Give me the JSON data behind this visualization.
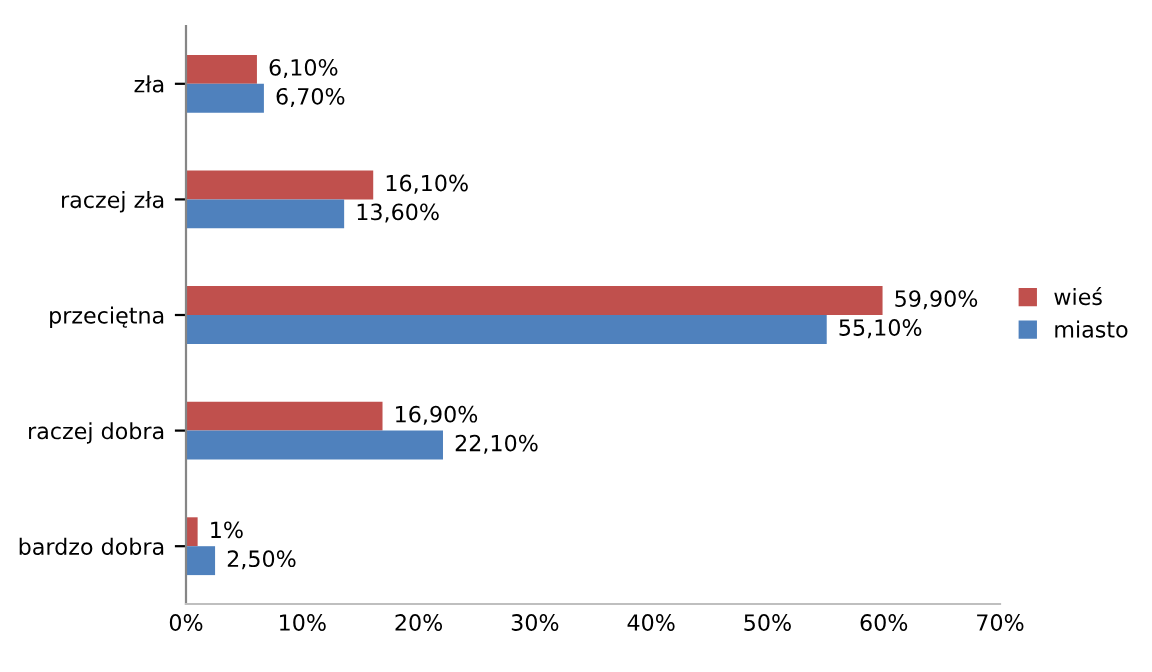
{
  "chart_data": {
    "type": "bar",
    "orientation": "horizontal",
    "categories": [
      "zła",
      "raczej zła",
      "przeciętna",
      "raczej dobra",
      "bardzo dobra"
    ],
    "series": [
      {
        "name": "wieś",
        "color": "#c0504d",
        "values": [
          6.1,
          16.1,
          59.9,
          16.9,
          1
        ],
        "value_labels": [
          "6,10%",
          "16,10%",
          "59,90%",
          "16,90%",
          "1%"
        ]
      },
      {
        "name": "miasto",
        "color": "#4f81bd",
        "values": [
          6.7,
          13.6,
          55.1,
          22.1,
          2.5
        ],
        "value_labels": [
          "6,70%",
          "13,60%",
          "55,10%",
          "22,10%",
          "2,50%"
        ]
      }
    ],
    "xlim": [
      0,
      70
    ],
    "xticks": [
      {
        "value": 0,
        "label": "0%"
      },
      {
        "value": 10,
        "label": "10%"
      },
      {
        "value": 20,
        "label": "20%"
      },
      {
        "value": 30,
        "label": "30%"
      },
      {
        "value": 40,
        "label": "40%"
      },
      {
        "value": 50,
        "label": "50%"
      },
      {
        "value": 60,
        "label": "60%"
      },
      {
        "value": 70,
        "label": "70%"
      }
    ],
    "legend": "right",
    "grid": false
  }
}
